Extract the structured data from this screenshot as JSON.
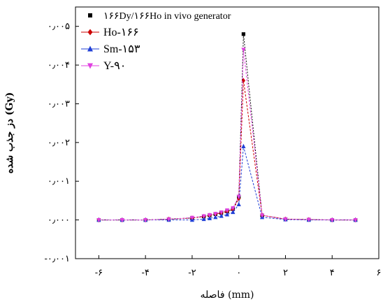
{
  "chart_data": {
    "type": "line",
    "title": "",
    "xlabel": "فاصله (mm)",
    "ylabel": "دز جذب شده (Gy)",
    "xlim": [
      -7,
      6
    ],
    "ylim": [
      -0.001,
      0.0055
    ],
    "x_ticks": [
      -6,
      -4,
      -2,
      0,
      2,
      4,
      6
    ],
    "x_tick_labels": [
      "-۶",
      "-۴",
      "-۲",
      "۰",
      "۲",
      "۴",
      "۶"
    ],
    "y_ticks": [
      -0.001,
      0.0,
      0.001,
      0.002,
      0.003,
      0.004,
      0.005
    ],
    "y_tick_labels": [
      "-۰٫۰۰۱",
      "۰٫۰۰۰",
      "۰٫۰۰۱",
      "۰٫۰۰۲",
      "۰٫۰۰۳",
      "۰٫۰۰۴",
      "۰٫۰۰۵"
    ],
    "grid": false,
    "legend_position": "top-left",
    "series": [
      {
        "name": "۱۶۶Dy/۱۶۶Ho in vivo generator",
        "color": "#000000",
        "marker": "square",
        "x": [
          -6,
          -5,
          -4,
          -3,
          -2,
          -1.5,
          -1.25,
          -1,
          -0.75,
          -0.5,
          -0.25,
          0,
          0.2,
          1,
          2,
          3,
          4,
          5
        ],
        "y": [
          0.0,
          0.0,
          0.0,
          2e-05,
          5e-05,
          9e-05,
          0.00012,
          0.00015,
          0.00018,
          0.00022,
          0.00028,
          0.0006,
          0.0048,
          0.00012,
          2e-05,
          1e-05,
          0.0,
          0.0
        ]
      },
      {
        "name": "Ho-۱۶۶",
        "color": "#cc0000",
        "marker": "diamond",
        "x": [
          -6,
          -5,
          -4,
          -3,
          -2,
          -1.5,
          -1.25,
          -1,
          -0.75,
          -0.5,
          -0.25,
          0,
          0.2,
          1,
          2,
          3,
          4,
          5
        ],
        "y": [
          0.0,
          0.0,
          0.0,
          2e-05,
          5e-05,
          9e-05,
          0.00012,
          0.00015,
          0.00018,
          0.00022,
          0.00027,
          0.00055,
          0.0036,
          0.00012,
          2e-05,
          1e-05,
          0.0,
          0.0
        ]
      },
      {
        "name": "Sm-۱۵۳",
        "color": "#1f3fd6",
        "marker": "triangle",
        "x": [
          -6,
          -5,
          -4,
          -3,
          -2,
          -1.5,
          -1.25,
          -1,
          -0.75,
          -0.5,
          -0.25,
          0,
          0.2,
          1,
          2,
          3,
          4,
          5
        ],
        "y": [
          0.0,
          0.0,
          0.0,
          0.0,
          0.0,
          2e-05,
          4e-05,
          7e-05,
          0.0001,
          0.00014,
          0.0002,
          0.0004,
          0.0019,
          7e-05,
          1e-05,
          0.0,
          0.0,
          0.0
        ]
      },
      {
        "name": "Y-۹۰",
        "color": "#e040e0",
        "marker": "triangle-down",
        "x": [
          -6,
          -5,
          -4,
          -3,
          -2,
          -1.5,
          -1.25,
          -1,
          -0.75,
          -0.5,
          -0.25,
          0,
          0.2,
          1,
          2,
          3,
          4,
          5
        ],
        "y": [
          0.0,
          0.0,
          0.0,
          2e-05,
          6e-05,
          0.0001,
          0.00013,
          0.00016,
          0.0002,
          0.00025,
          0.00031,
          0.0006,
          0.0044,
          0.00012,
          2e-05,
          1e-05,
          0.0,
          0.0
        ]
      }
    ]
  }
}
